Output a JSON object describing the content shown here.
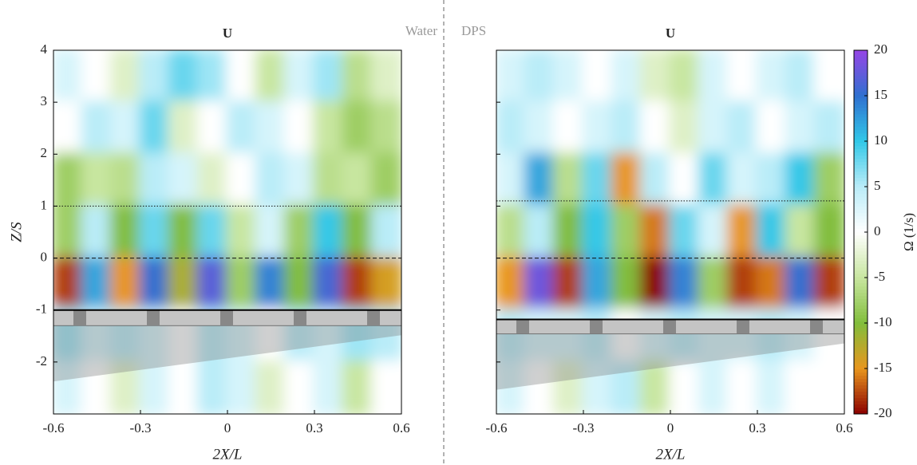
{
  "chart_data": [
    {
      "type": "heatmap",
      "title": "U",
      "annotation": "Water",
      "xlabel": "2X/L",
      "ylabel": "Z/S",
      "xlim": [
        -0.6,
        0.6
      ],
      "ylim": [
        -3,
        4
      ],
      "xticks": [
        -0.6,
        -0.3,
        0,
        0.3,
        0.6
      ],
      "yticks": [
        4,
        3,
        2,
        1,
        0,
        -1,
        -2
      ],
      "ytick_labels": true,
      "x": [
        -0.55,
        -0.45,
        -0.35,
        -0.25,
        -0.15,
        -0.05,
        0.05,
        0.15,
        0.25,
        0.35,
        0.45,
        0.55
      ],
      "y": [
        3.5,
        2.5,
        1.5,
        0.5,
        -0.5,
        -1.5,
        -2.5
      ],
      "values": [
        [
          3,
          0,
          -3,
          5,
          8,
          6,
          0,
          -5,
          3,
          6,
          -6,
          -3
        ],
        [
          0,
          5,
          3,
          8,
          -3,
          0,
          5,
          3,
          0,
          -5,
          -8,
          -6
        ],
        [
          -8,
          -5,
          -6,
          5,
          3,
          -3,
          0,
          5,
          3,
          -6,
          -5,
          -8
        ],
        [
          -8,
          5,
          -10,
          8,
          -10,
          8,
          -5,
          3,
          -8,
          10,
          -10,
          5
        ],
        [
          -18,
          12,
          -15,
          15,
          -12,
          17,
          -8,
          14,
          -10,
          16,
          -18,
          -14
        ],
        [
          6,
          3,
          5,
          3,
          0,
          5,
          3,
          0,
          5,
          3,
          6,
          5
        ],
        [
          3,
          0,
          -3,
          3,
          0,
          5,
          3,
          -3,
          0,
          3,
          -5,
          0
        ]
      ],
      "reference_lines": [
        {
          "y": 1,
          "style": "dotted"
        },
        {
          "y": 0,
          "style": "dashed"
        }
      ],
      "bed": [
        -1,
        -1.3
      ]
    },
    {
      "type": "heatmap",
      "title": "U",
      "annotation": "DPS",
      "xlabel": "2X/L",
      "xlim": [
        -0.6,
        0.6
      ],
      "ylim": [
        -3,
        4
      ],
      "xticks": [
        -0.6,
        -0.3,
        0,
        0.3,
        0.6
      ],
      "yticks": [
        4,
        3,
        2,
        1,
        0,
        -1,
        -2
      ],
      "ytick_labels": false,
      "x": [
        -0.55,
        -0.45,
        -0.35,
        -0.25,
        -0.15,
        -0.05,
        0.05,
        0.15,
        0.25,
        0.35,
        0.45,
        0.55
      ],
      "y": [
        3.5,
        2.5,
        1.5,
        0.5,
        -0.5,
        -1.5,
        -2.5
      ],
      "values": [
        [
          3,
          5,
          3,
          0,
          3,
          -3,
          -5,
          3,
          0,
          3,
          5,
          0
        ],
        [
          5,
          3,
          0,
          3,
          5,
          0,
          -3,
          3,
          5,
          0,
          3,
          5
        ],
        [
          3,
          12,
          -6,
          8,
          -15,
          5,
          0,
          8,
          3,
          5,
          10,
          -8
        ],
        [
          -6,
          5,
          -10,
          10,
          -8,
          -16,
          8,
          3,
          -15,
          10,
          -5,
          -10
        ],
        [
          -15,
          18,
          -18,
          12,
          -10,
          -20,
          14,
          -8,
          -18,
          -16,
          15,
          -18
        ],
        [
          5,
          3,
          3,
          5,
          0,
          3,
          5,
          3,
          3,
          5,
          3,
          0
        ],
        [
          3,
          0,
          -3,
          3,
          5,
          -5,
          0,
          3,
          0,
          3,
          0,
          0
        ]
      ],
      "reference_lines": [
        {
          "y": 1.1,
          "style": "dotted"
        },
        {
          "y": 0,
          "style": "dashed"
        }
      ],
      "bed": [
        -1.18,
        -1.46
      ],
      "colorbar": {
        "label": "Ω (1/s)",
        "lim": [
          -20,
          20
        ],
        "ticks": [
          20,
          15,
          10,
          5,
          0,
          -5,
          -10,
          -15,
          -20
        ]
      }
    }
  ]
}
